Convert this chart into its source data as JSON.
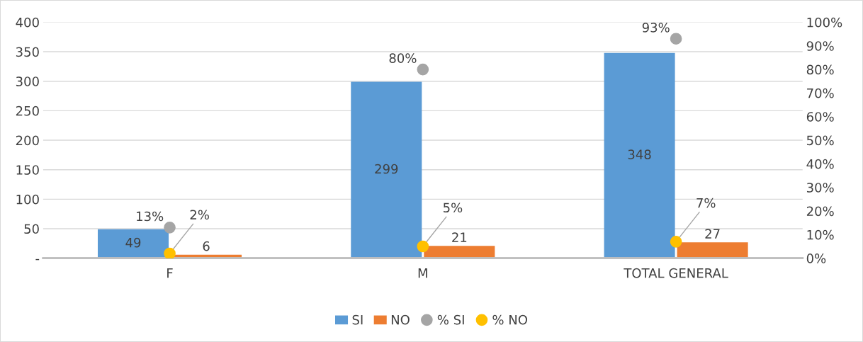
{
  "chart_data": {
    "type": "bar",
    "categories": [
      "F",
      "M",
      "TOTAL GENERAL"
    ],
    "series": [
      {
        "name": "SI",
        "color": "#5b9bd5",
        "values": [
          49,
          299,
          348
        ],
        "value_labels": [
          "49",
          "299",
          "348"
        ]
      },
      {
        "name": "NO",
        "color": "#ed7d31",
        "values": [
          6,
          21,
          27
        ],
        "value_labels": [
          "6",
          "21",
          "27"
        ]
      },
      {
        "name": "% SI",
        "type": "scatter",
        "axis": "y2",
        "color": "#a5a5a5",
        "values": [
          13,
          80,
          93
        ],
        "value_labels": [
          "13%",
          "80%",
          "93%"
        ]
      },
      {
        "name": "% NO",
        "type": "scatter",
        "axis": "y2",
        "color": "#ffc000",
        "values": [
          2,
          5,
          7
        ],
        "value_labels": [
          "2%",
          "5%",
          "7%"
        ]
      }
    ],
    "ylim": [
      0,
      400
    ],
    "yticks": [
      {
        "value": 0,
        "label": "-"
      },
      50,
      100,
      150,
      200,
      250,
      300,
      350,
      400
    ],
    "y2lim": [
      0,
      100
    ],
    "y2ticks": [
      {
        "value": 0,
        "label": "0%"
      },
      {
        "value": 10,
        "label": "10%"
      },
      {
        "value": 20,
        "label": "20%"
      },
      {
        "value": 30,
        "label": "30%"
      },
      {
        "value": 40,
        "label": "40%"
      },
      {
        "value": 50,
        "label": "50%"
      },
      {
        "value": 60,
        "label": "60%"
      },
      {
        "value": 70,
        "label": "70%"
      },
      {
        "value": 80,
        "label": "80%"
      },
      {
        "value": 90,
        "label": "90%"
      },
      {
        "value": 100,
        "label": "100%"
      }
    ],
    "grid": "y",
    "legend": "bottom",
    "marker": "circle"
  }
}
